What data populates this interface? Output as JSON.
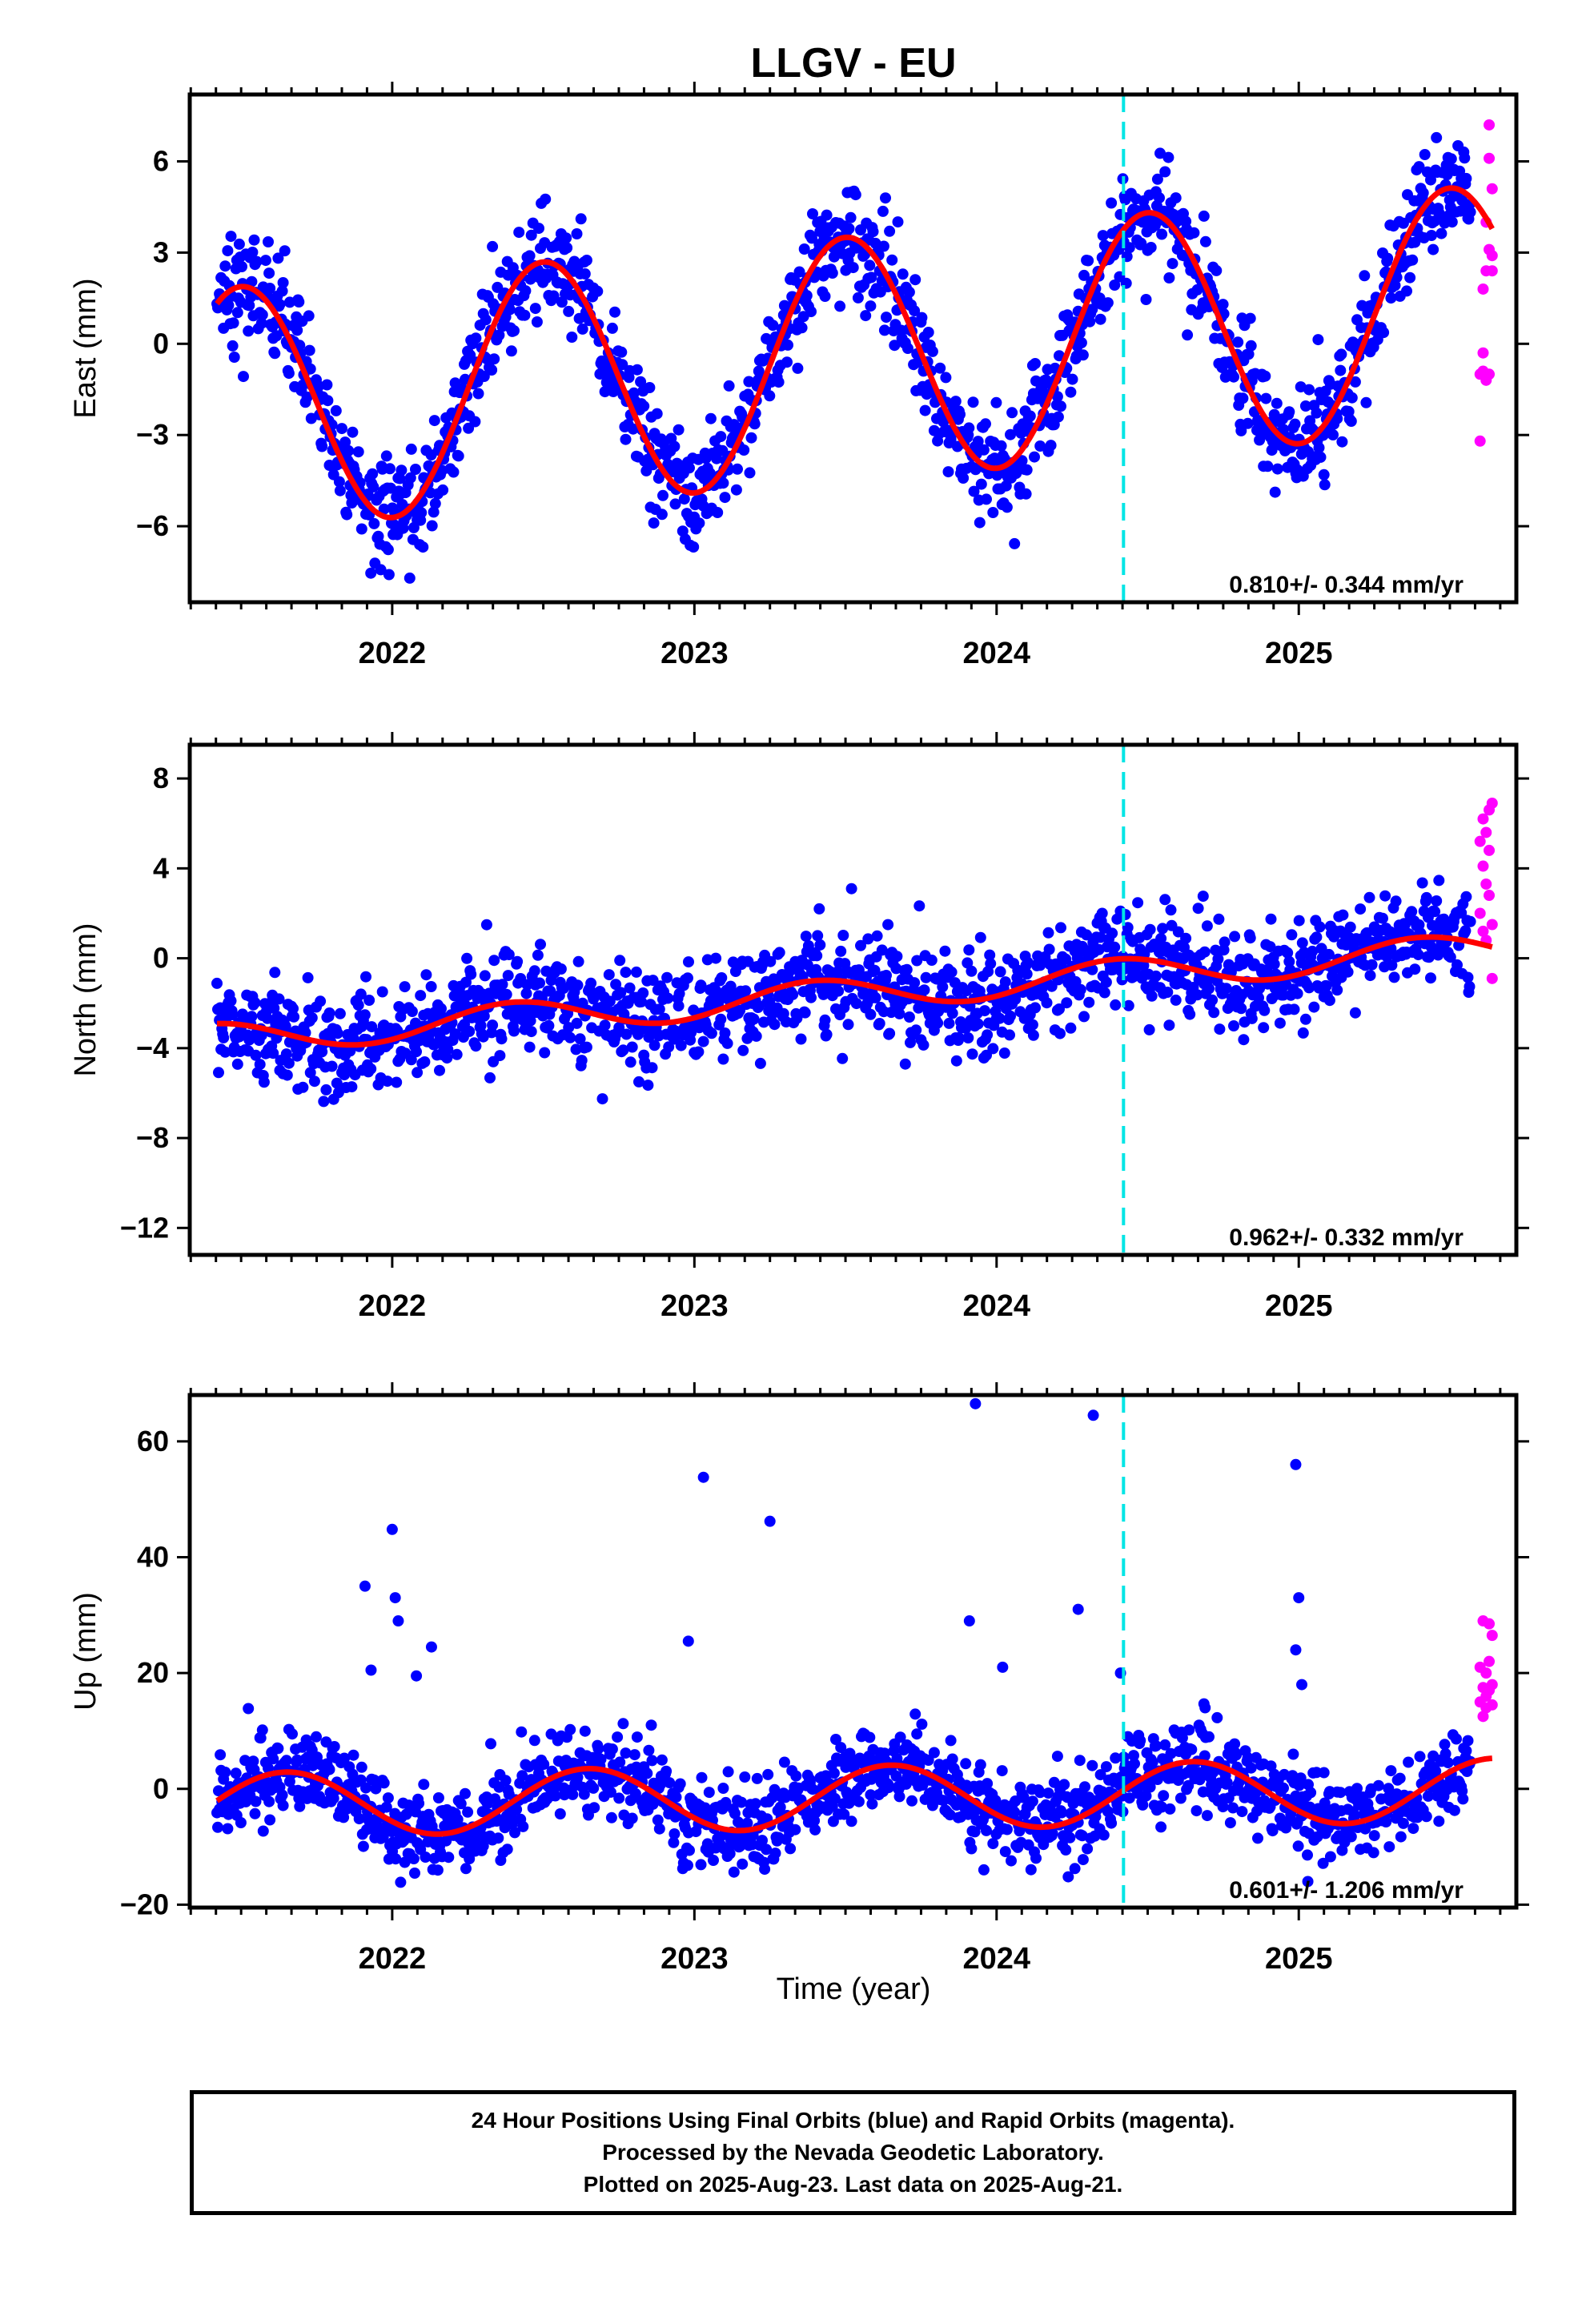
{
  "title": "LLGV - EU",
  "xlabel": "Time (year)",
  "colors": {
    "final": "#0000ff",
    "rapid": "#ff00ff",
    "model": "#ff0000",
    "marker": "#00e5e5"
  },
  "chart_data": [
    {
      "type": "scatter",
      "component": "east",
      "ylabel": "East (mm)",
      "xlim": [
        2021.33,
        2025.72
      ],
      "ylim": [
        -8.5,
        8.2
      ],
      "yticks": [
        -6,
        -3,
        0,
        3,
        6
      ],
      "xticks": [
        2022,
        2023,
        2024,
        2025
      ],
      "vline": 2024.42,
      "rate_text": "0.810+/- 0.344 mm/yr",
      "series": [
        {
          "kind": "final_points",
          "amplitude": 4.0,
          "phase_peak": 0.5,
          "trend": 0.81,
          "offset": -0.5,
          "noise": 0.9,
          "x_start": 2021.42,
          "x_end": 2025.57
        },
        {
          "kind": "rapid_points",
          "x": [
            2025.6,
            2025.6,
            2025.61,
            2025.61,
            2025.61,
            2025.62,
            2025.62,
            2025.62,
            2025.62,
            2025.63,
            2025.63,
            2025.63,
            2025.63,
            2025.64,
            2025.64,
            2025.64
          ],
          "y": [
            -3.2,
            -1.0,
            -0.3,
            1.8,
            -0.9,
            -1.2,
            2.4,
            4.0,
            -1.1,
            -1.0,
            3.1,
            7.2,
            6.1,
            5.1,
            2.4,
            2.9
          ]
        }
      ]
    },
    {
      "type": "scatter",
      "component": "north",
      "ylabel": "North (mm)",
      "xlim": [
        2021.33,
        2025.72
      ],
      "ylim": [
        -13.2,
        9.5
      ],
      "yticks": [
        -12,
        -8,
        -4,
        0,
        4,
        8
      ],
      "xticks": [
        2022,
        2023,
        2024,
        2025
      ],
      "vline": 2024.42,
      "rate_text": "0.962+/- 0.332 mm/yr",
      "series": [
        {
          "kind": "final_points",
          "amplitude": 0.7,
          "phase_peak": 0.4,
          "trend": 0.962,
          "offset": -1.6,
          "noise": 1.1,
          "x_start": 2021.42,
          "x_end": 2025.57
        },
        {
          "kind": "rapid_points",
          "x": [
            2025.6,
            2025.6,
            2025.61,
            2025.61,
            2025.61,
            2025.62,
            2025.62,
            2025.62,
            2025.63,
            2025.63,
            2025.63,
            2025.64,
            2025.64,
            2025.64
          ],
          "y": [
            5.2,
            2.0,
            4.1,
            6.2,
            1.2,
            3.3,
            5.6,
            0.8,
            2.8,
            6.6,
            4.8,
            -0.9,
            1.5,
            6.9
          ]
        }
      ]
    },
    {
      "type": "scatter",
      "component": "up",
      "ylabel": "Up (mm)",
      "xlim": [
        2021.33,
        2025.72
      ],
      "ylim": [
        -20.5,
        68.0
      ],
      "yticks": [
        -20,
        0,
        20,
        40,
        60
      ],
      "xticks": [
        2022,
        2023,
        2024,
        2025
      ],
      "vline": 2024.42,
      "rate_text": "0.601+/- 1.206 mm/yr",
      "series": [
        {
          "kind": "final_points",
          "amplitude": 5.5,
          "phase_peak": 0.65,
          "trend": 0.6,
          "offset": -1.5,
          "noise": 3.6,
          "x_start": 2021.42,
          "x_end": 2025.57
        },
        {
          "kind": "rapid_points",
          "x": [
            2025.6,
            2025.6,
            2025.61,
            2025.61,
            2025.61,
            2025.62,
            2025.62,
            2025.62,
            2025.63,
            2025.63,
            2025.63,
            2025.64,
            2025.64,
            2025.64
          ],
          "y": [
            21.0,
            15.0,
            17.5,
            12.5,
            29.0,
            14.0,
            20.0,
            16.0,
            22.0,
            17.0,
            28.5,
            26.5,
            14.5,
            18.0
          ]
        },
        {
          "kind": "outliers",
          "x": [
            2021.91,
            2021.93,
            2022.0,
            2022.01,
            2022.02,
            2022.13,
            2022.08,
            2022.98,
            2023.03,
            2023.25,
            2023.93,
            2023.91,
            2024.32,
            2024.27,
            2024.99,
            2025.0,
            2024.99,
            2025.01,
            2024.02,
            2024.41,
            2024.69,
            2024.67,
            2025.03
          ],
          "y": [
            35.0,
            20.5,
            44.8,
            33.0,
            29.0,
            24.5,
            19.5,
            25.5,
            53.8,
            46.2,
            66.5,
            29.0,
            64.5,
            31.0,
            56.0,
            33.0,
            24.0,
            18.0,
            21.0,
            20.0,
            14.0,
            11.0,
            -16.0
          ]
        }
      ]
    }
  ],
  "footer": {
    "line1": "24 Hour Positions Using Final Orbits (blue) and Rapid Orbits (magenta).",
    "line2": "Processed by the Nevada Geodetic Laboratory.",
    "line3": "Plotted on 2025-Aug-23. Last data on 2025-Aug-21."
  }
}
